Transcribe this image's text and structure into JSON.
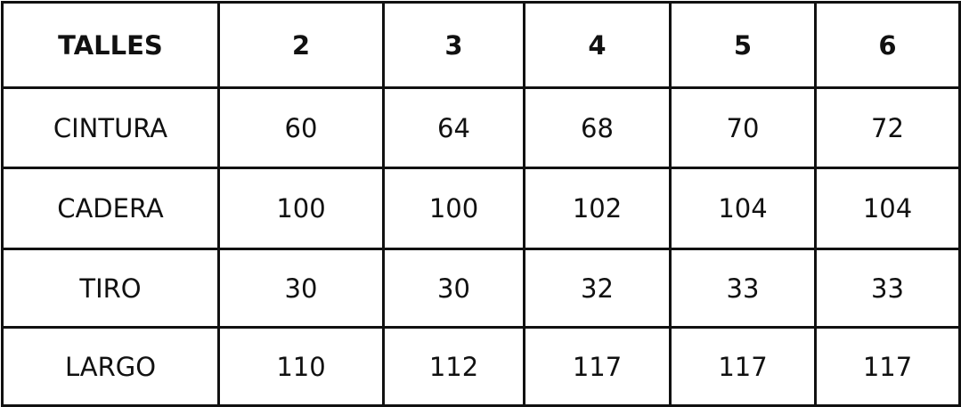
{
  "table": {
    "header": [
      "TALLES",
      "2",
      "3",
      "4",
      "5",
      "6"
    ],
    "rows": [
      [
        "CINTURA",
        "60",
        "64",
        "68",
        "70",
        "72"
      ],
      [
        "CADERA",
        "100",
        "100",
        "102",
        "104",
        "104"
      ],
      [
        "TIRO",
        "30",
        "30",
        "32",
        "33",
        "33"
      ],
      [
        "LARGO",
        "110",
        "112",
        "117",
        "117",
        "117"
      ]
    ]
  }
}
